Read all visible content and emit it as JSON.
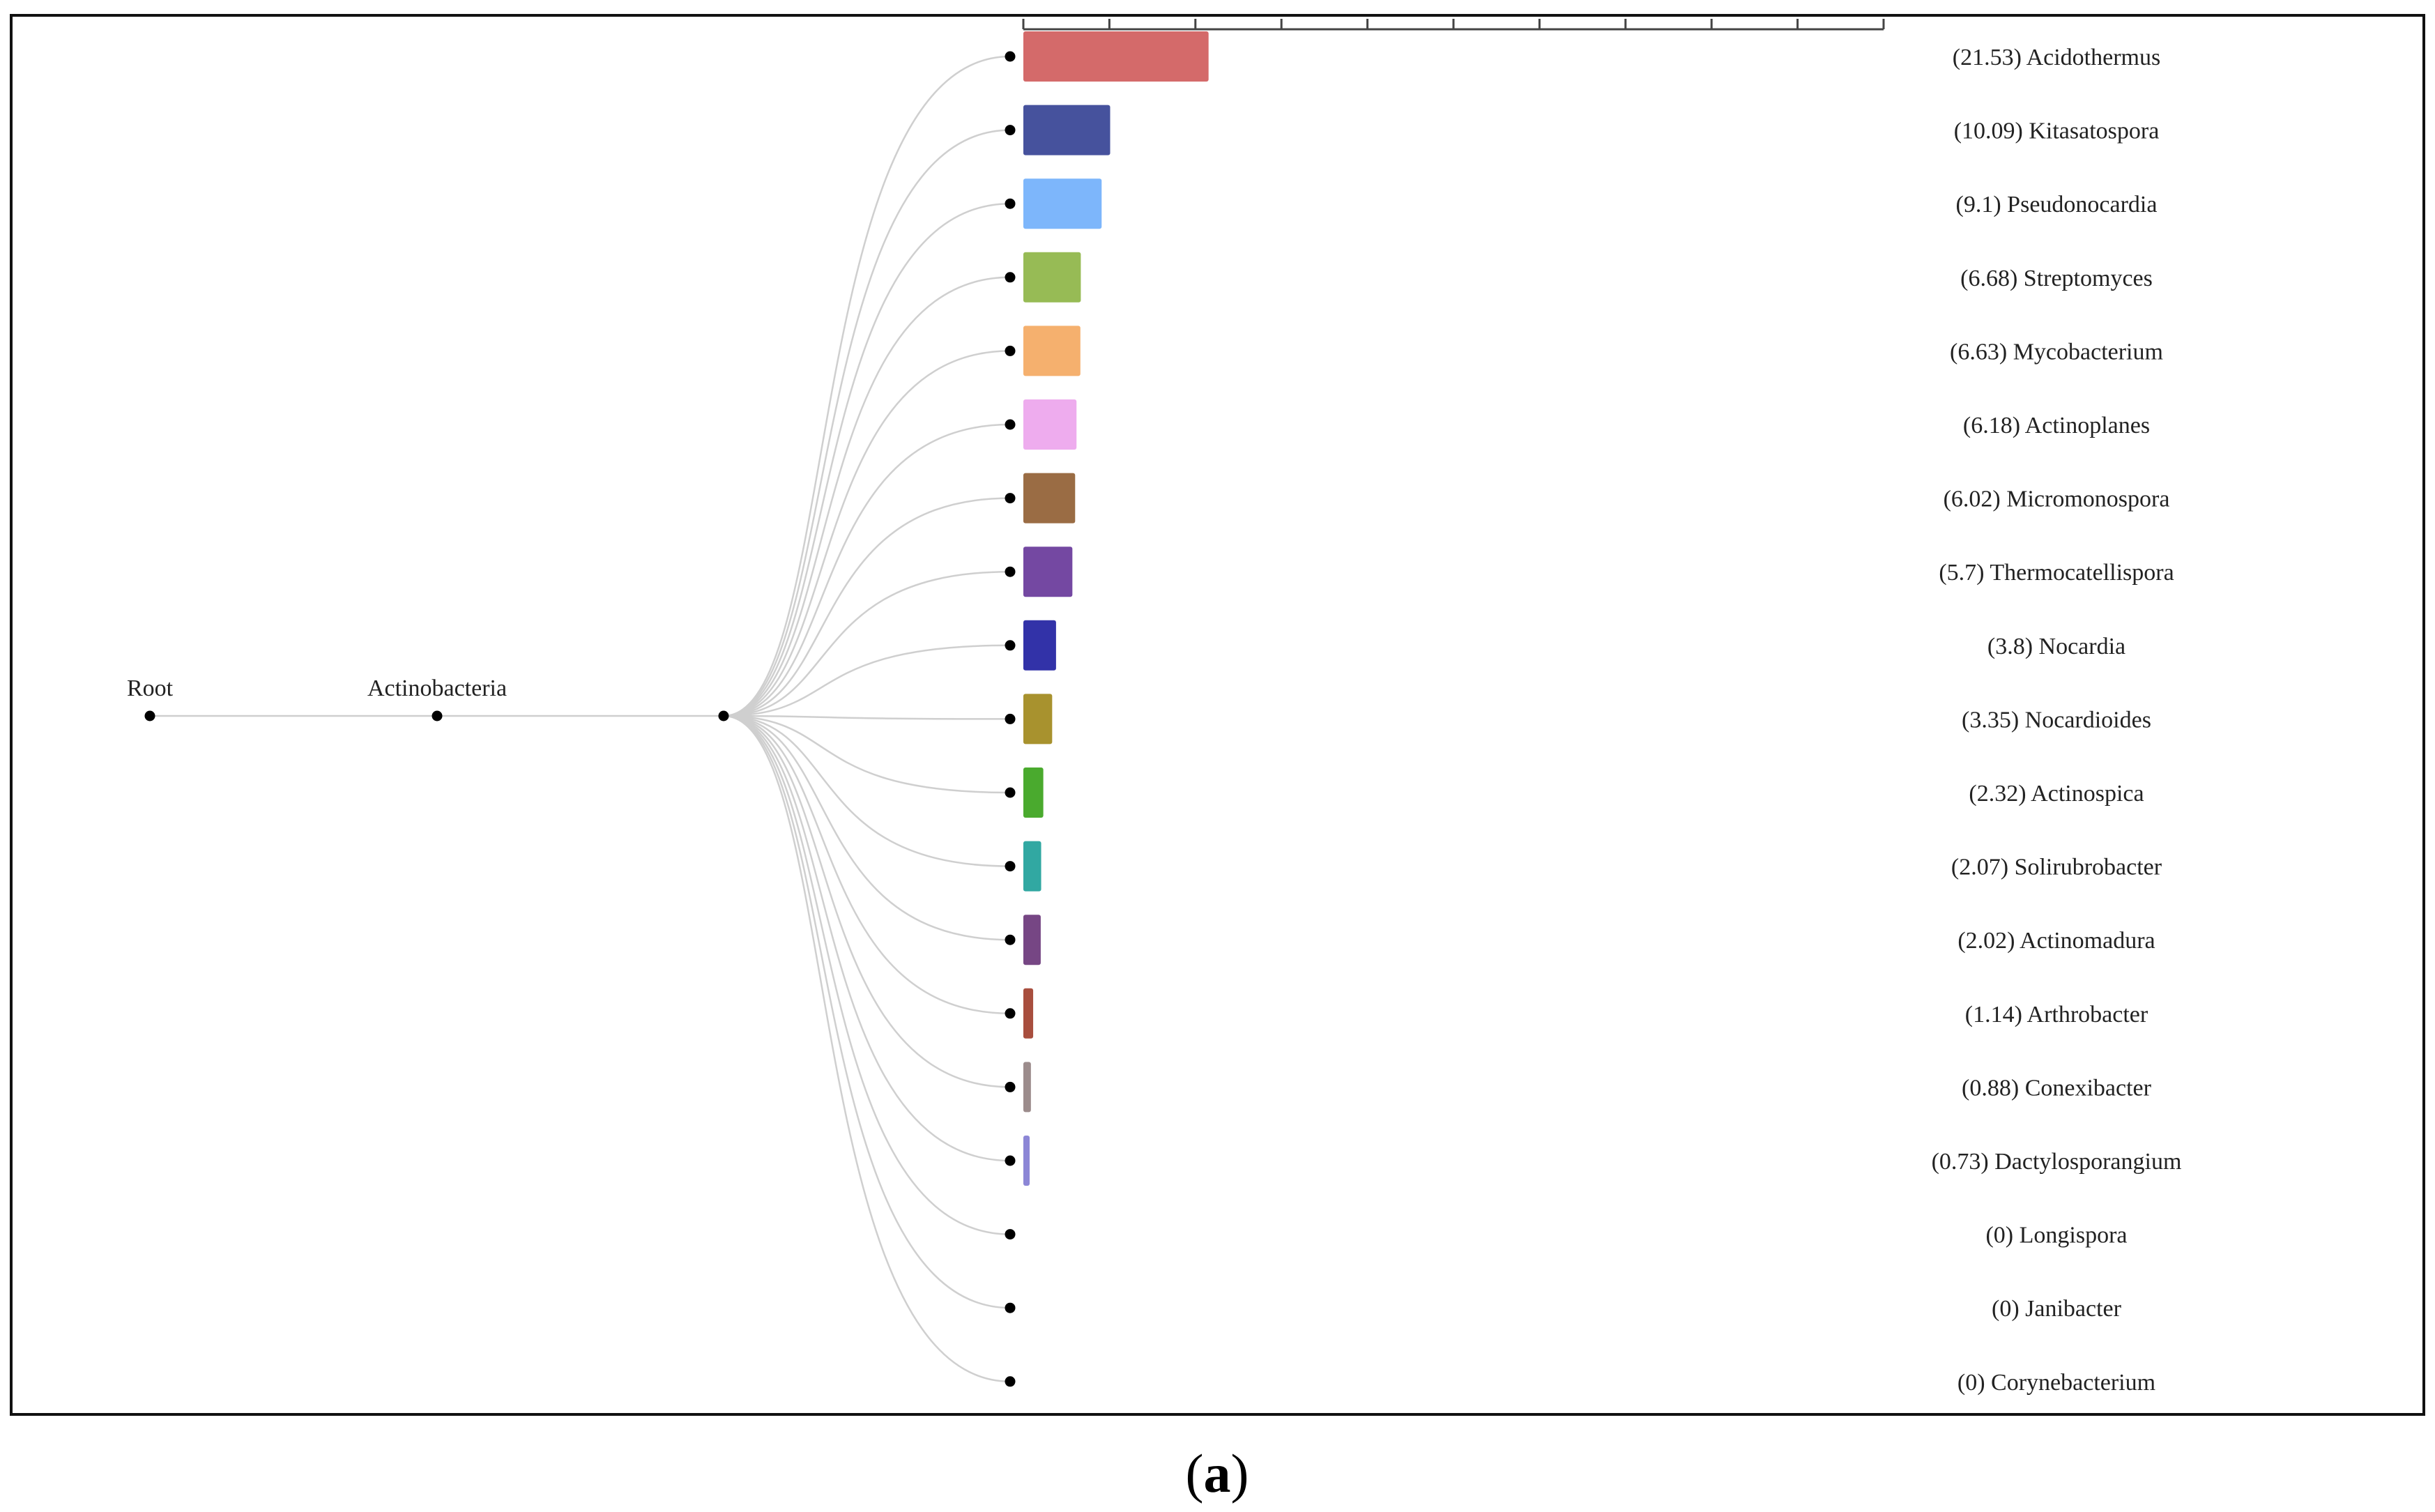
{
  "chart_data": {
    "type": "bar",
    "title": "",
    "subtitle": "",
    "xlabel": "",
    "ylabel": "",
    "xlim": [
      0,
      100
    ],
    "axis_ticks": 10,
    "grid": false,
    "tree": {
      "root_label": "Root",
      "phylum_label": "Actinobacteria"
    },
    "categories": [
      "Acidothermus",
      "Kitasatospora",
      "Pseudonocardia",
      "Streptomyces",
      "Mycobacterium",
      "Actinoplanes",
      "Micromonospora",
      "Thermocatellispora",
      "Nocardia",
      "Nocardioides",
      "Actinospica",
      "Solirubrobacter",
      "Actinomadura",
      "Arthrobacter",
      "Conexibacter",
      "Dactylosporangium",
      "Longispora",
      "Janibacter",
      "Corynebacterium"
    ],
    "values": [
      21.53,
      10.09,
      9.1,
      6.68,
      6.63,
      6.18,
      6.02,
      5.7,
      3.8,
      3.35,
      2.32,
      2.07,
      2.02,
      1.14,
      0.88,
      0.73,
      0,
      0,
      0
    ],
    "labels": [
      "(21.53) Acidothermus",
      "(10.09) Kitasatospora",
      "(9.1) Pseudonocardia",
      "(6.68) Streptomyces",
      "(6.63) Mycobacterium",
      "(6.18) Actinoplanes",
      "(6.02) Micromonospora",
      "(5.7) Thermocatellispora",
      "(3.8) Nocardia",
      "(3.35) Nocardioides",
      "(2.32) Actinospica",
      "(2.07) Solirubrobacter",
      "(2.02) Actinomadura",
      "(1.14) Arthrobacter",
      "(0.88) Conexibacter",
      "(0.73) Dactylosporangium",
      "(0) Longispora",
      "(0) Janibacter",
      "(0) Corynebacterium"
    ],
    "colors": [
      "#d46a6a",
      "#46529d",
      "#7db6fb",
      "#97bb55",
      "#f5b06e",
      "#eeacee",
      "#9a6c44",
      "#7448a2",
      "#3232a8",
      "#a8922e",
      "#4aaa2e",
      "#31a8a2",
      "#764684",
      "#a84e3e",
      "#9c8c8c",
      "#8c86d6",
      "#ffffff",
      "#ffffff",
      "#ffffff"
    ]
  },
  "caption": {
    "open": "(",
    "letter": "a",
    "close": ")"
  }
}
